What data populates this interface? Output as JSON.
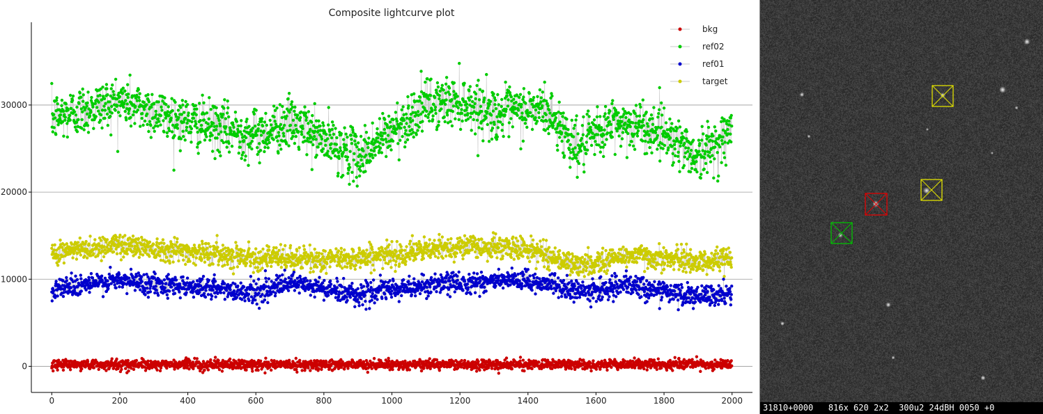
{
  "chart_data": {
    "type": "scatter",
    "title": "Composite lightcurve plot",
    "xlabel": "",
    "ylabel": "",
    "xlim": [
      -60,
      2060
    ],
    "ylim": [
      -3000,
      39500
    ],
    "xticks": [
      0,
      200,
      400,
      600,
      800,
      1000,
      1200,
      1400,
      1600,
      1800,
      2000
    ],
    "yticks": [
      0,
      10000,
      20000,
      30000
    ],
    "grid": true,
    "legend": "top-right",
    "n_points": 2000,
    "series": [
      {
        "name": "bkg",
        "color": "#cc0000",
        "mean": 200,
        "noise": 500,
        "trend": [
          [
            0,
            200
          ],
          [
            2000,
            200
          ]
        ]
      },
      {
        "name": "ref02",
        "color": "#00cc00",
        "mean": 28500,
        "noise": 2600,
        "trend": [
          [
            0,
            28500
          ],
          [
            200,
            30500
          ],
          [
            400,
            28000
          ],
          [
            600,
            26500
          ],
          [
            700,
            28000
          ],
          [
            900,
            24000
          ],
          [
            1100,
            30000
          ],
          [
            1200,
            30500
          ],
          [
            1300,
            29000
          ],
          [
            1450,
            29500
          ],
          [
            1550,
            25000
          ],
          [
            1650,
            28000
          ],
          [
            1800,
            27000
          ],
          [
            1900,
            24000
          ],
          [
            2000,
            27000
          ]
        ]
      },
      {
        "name": "ref01",
        "color": "#0000cc",
        "mean": 9200,
        "noise": 1100,
        "trend": [
          [
            0,
            9000
          ],
          [
            200,
            9800
          ],
          [
            400,
            9200
          ],
          [
            600,
            8500
          ],
          [
            700,
            9500
          ],
          [
            900,
            8300
          ],
          [
            1100,
            9300
          ],
          [
            1300,
            9800
          ],
          [
            1450,
            9600
          ],
          [
            1550,
            8500
          ],
          [
            1700,
            9300
          ],
          [
            1900,
            7900
          ],
          [
            2000,
            8300
          ]
        ]
      },
      {
        "name": "target",
        "color": "#cccc00",
        "mean": 13000,
        "noise": 1200,
        "trend": [
          [
            0,
            13000
          ],
          [
            200,
            14000
          ],
          [
            400,
            13200
          ],
          [
            600,
            12500
          ],
          [
            800,
            12200
          ],
          [
            1000,
            12800
          ],
          [
            1200,
            13800
          ],
          [
            1400,
            13500
          ],
          [
            1550,
            11500
          ],
          [
            1700,
            12800
          ],
          [
            1900,
            12000
          ],
          [
            2000,
            12300
          ]
        ]
      }
    ]
  },
  "image_panel": {
    "status_text": "31810+0000   816x 620 2x2  300u2 24dBH 0050 +0",
    "markers": [
      {
        "name": "target-marker-1",
        "color": "#e0e000"
      },
      {
        "name": "target-marker-2",
        "color": "#e0e000"
      },
      {
        "name": "ref01-marker",
        "color": "#e00000"
      },
      {
        "name": "ref02-marker",
        "color": "#00c000"
      }
    ]
  }
}
